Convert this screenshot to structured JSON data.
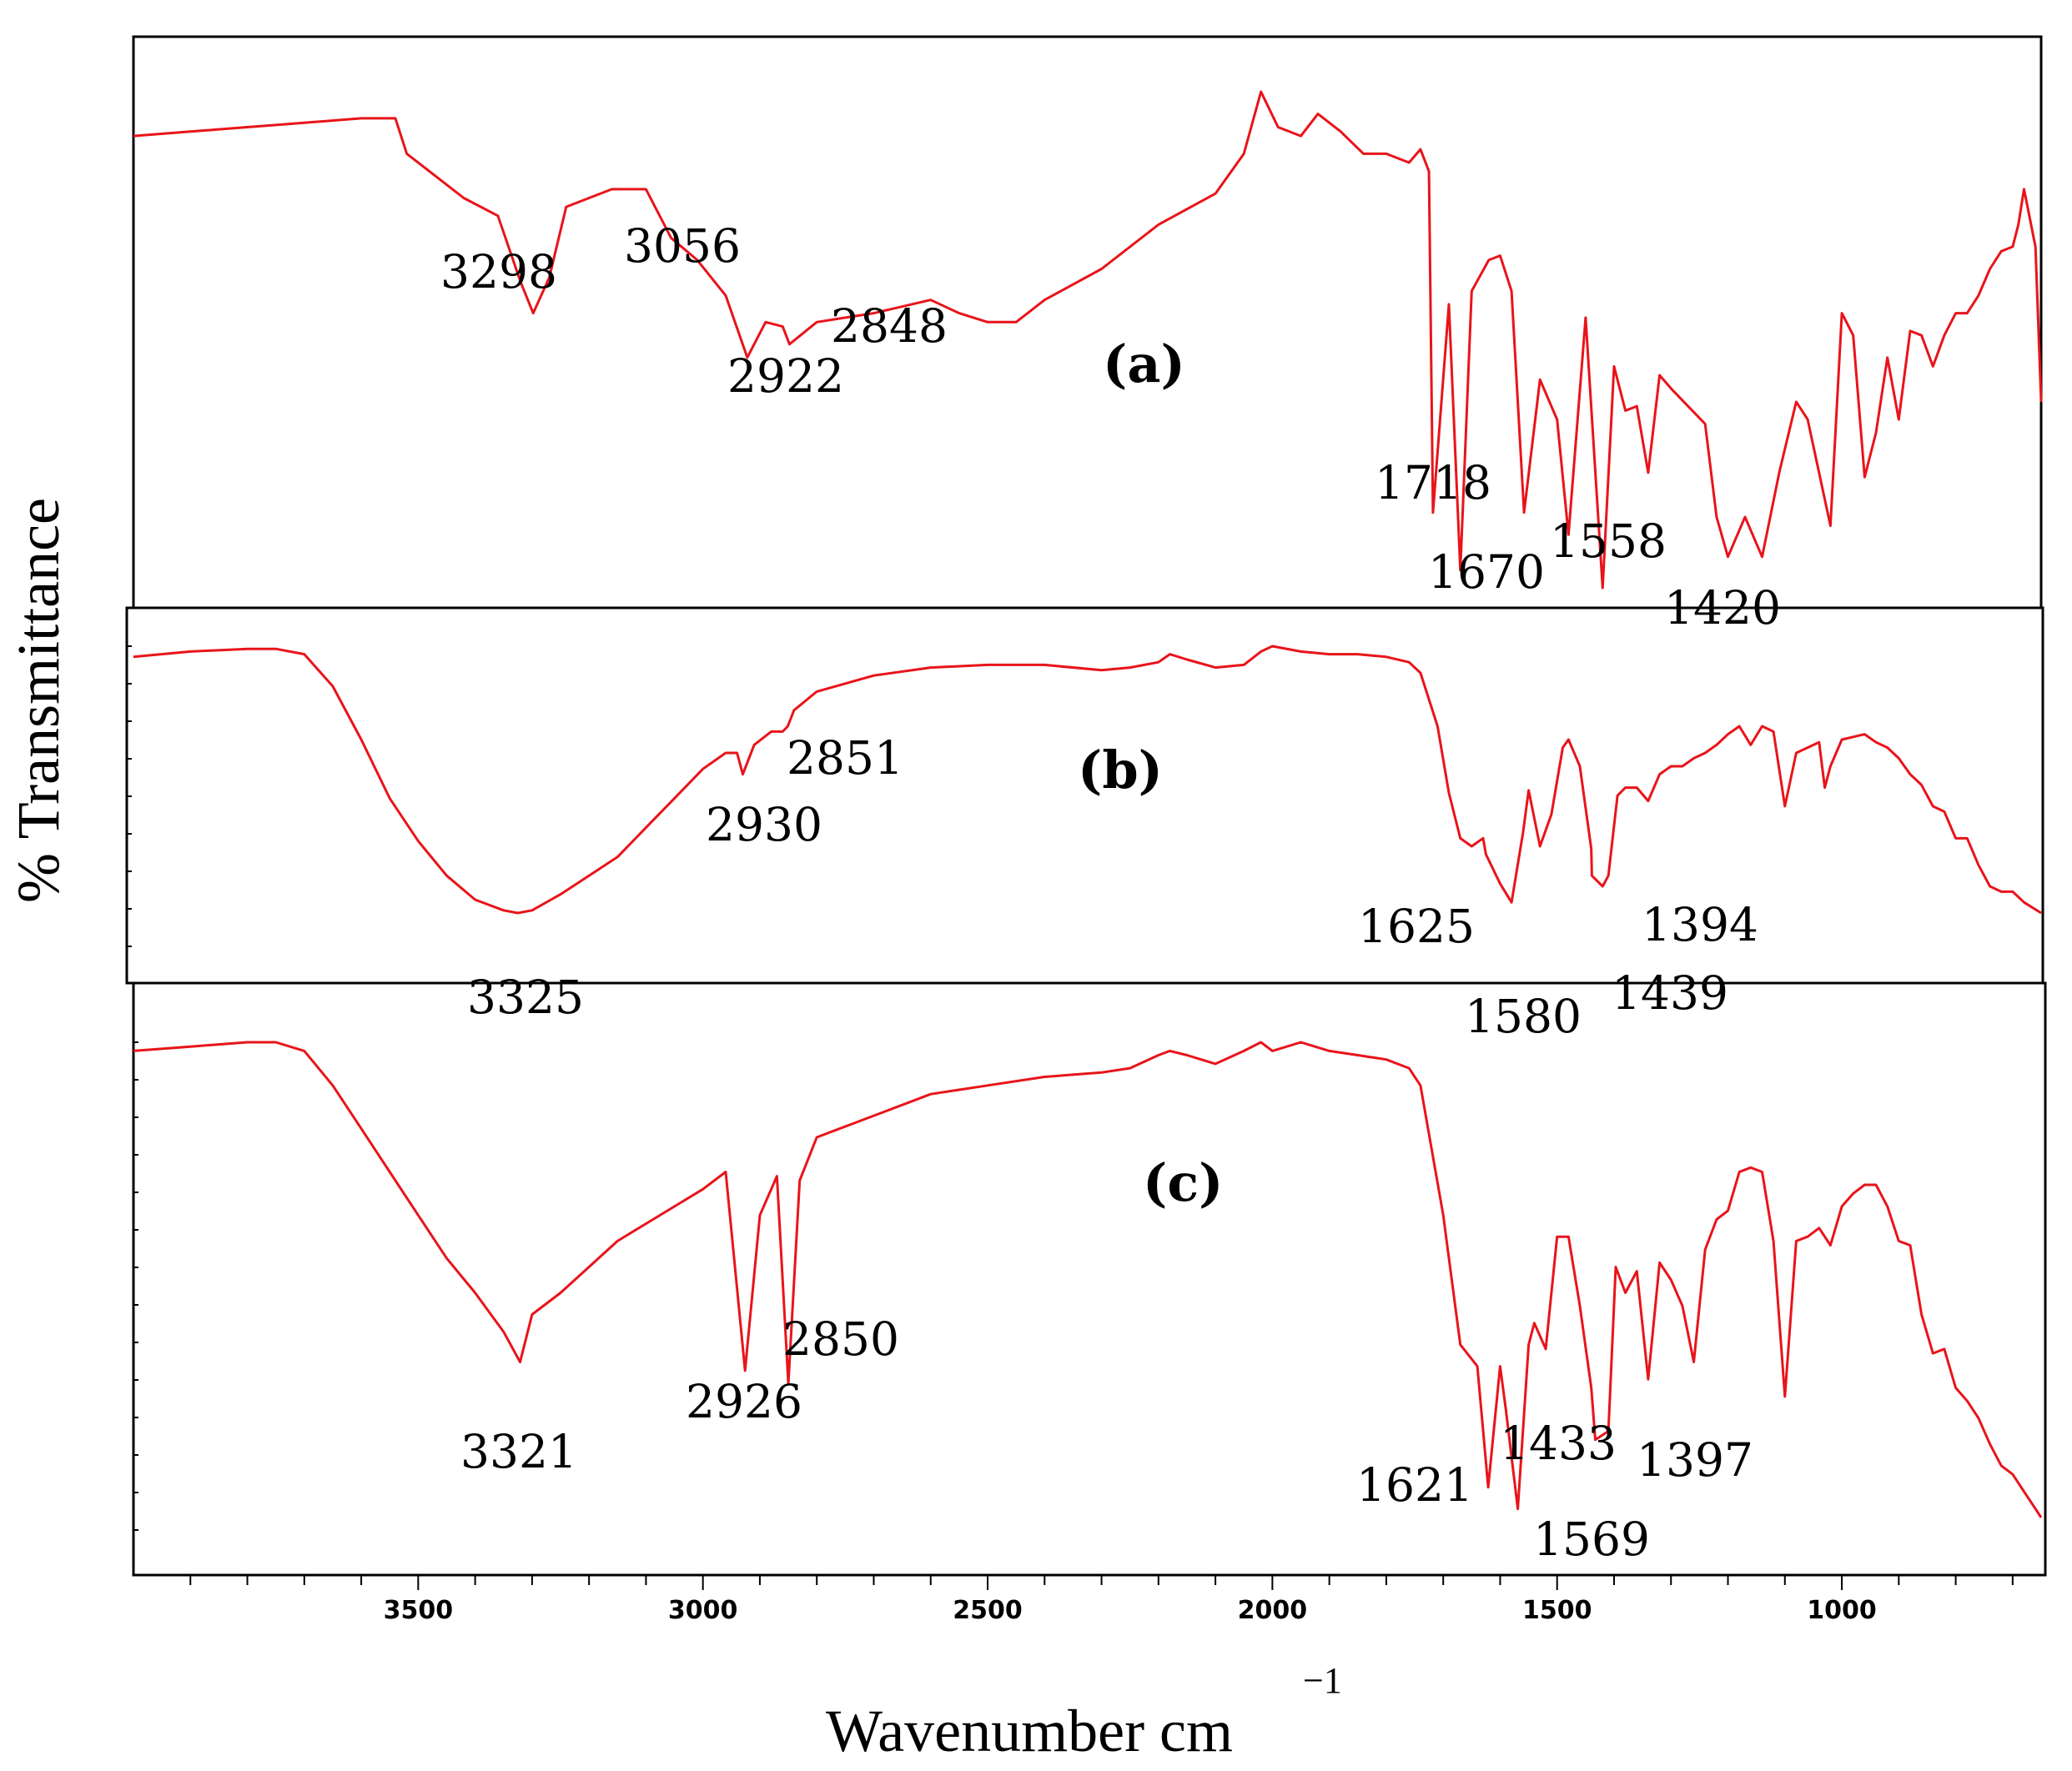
{
  "chart_data": {
    "type": "line",
    "title": "",
    "xlabel": "Wavenumber cm",
    "xlabel_superscript": "−1",
    "ylabel": "% Transmittance",
    "x_reversed": true,
    "xlim": [
      4000,
      650
    ],
    "x_ticks": [
      3500,
      3000,
      2500,
      2000,
      1500,
      1000
    ],
    "x_tick_labels": [
      "3500",
      "3000",
      "2500",
      "2000",
      "1500",
      "1000"
    ],
    "line_color": "#e8141a",
    "panels": [
      {
        "label": "(a)",
        "points": [
          [
            4000,
            0.1
          ],
          [
            3900,
            0.09
          ],
          [
            3800,
            0.08
          ],
          [
            3700,
            0.07
          ],
          [
            3600,
            0.06
          ],
          [
            3540,
            0.06
          ],
          [
            3520,
            0.14
          ],
          [
            3420,
            0.24
          ],
          [
            3360,
            0.28
          ],
          [
            3320,
            0.43
          ],
          [
            3298,
            0.5
          ],
          [
            3270,
            0.42
          ],
          [
            3240,
            0.26
          ],
          [
            3200,
            0.24
          ],
          [
            3160,
            0.22
          ],
          [
            3100,
            0.22
          ],
          [
            3056,
            0.33
          ],
          [
            3010,
            0.38
          ],
          [
            2960,
            0.46
          ],
          [
            2922,
            0.6
          ],
          [
            2890,
            0.52
          ],
          [
            2860,
            0.53
          ],
          [
            2848,
            0.57
          ],
          [
            2800,
            0.52
          ],
          [
            2700,
            0.5
          ],
          [
            2600,
            0.47
          ],
          [
            2550,
            0.5
          ],
          [
            2500,
            0.52
          ],
          [
            2450,
            0.52
          ],
          [
            2400,
            0.47
          ],
          [
            2300,
            0.4
          ],
          [
            2200,
            0.3
          ],
          [
            2100,
            0.23
          ],
          [
            2050,
            0.14
          ],
          [
            2020,
            0.0
          ],
          [
            1990,
            0.08
          ],
          [
            1950,
            0.1
          ],
          [
            1920,
            0.05
          ],
          [
            1880,
            0.09
          ],
          [
            1840,
            0.14
          ],
          [
            1800,
            0.14
          ],
          [
            1760,
            0.16
          ],
          [
            1740,
            0.13
          ],
          [
            1725,
            0.18
          ],
          [
            1718,
            0.95
          ],
          [
            1690,
            0.48
          ],
          [
            1670,
            1.08
          ],
          [
            1650,
            0.45
          ],
          [
            1620,
            0.38
          ],
          [
            1600,
            0.37
          ],
          [
            1580,
            0.45
          ],
          [
            1558,
            0.95
          ],
          [
            1530,
            0.65
          ],
          [
            1500,
            0.74
          ],
          [
            1480,
            1.0
          ],
          [
            1450,
            0.51
          ],
          [
            1420,
            1.12
          ],
          [
            1400,
            0.62
          ],
          [
            1380,
            0.72
          ],
          [
            1360,
            0.71
          ],
          [
            1340,
            0.86
          ],
          [
            1320,
            0.64
          ],
          [
            1300,
            0.67
          ],
          [
            1270,
            0.71
          ],
          [
            1240,
            0.75
          ],
          [
            1220,
            0.96
          ],
          [
            1200,
            1.05
          ],
          [
            1170,
            0.96
          ],
          [
            1140,
            1.05
          ],
          [
            1110,
            0.86
          ],
          [
            1080,
            0.7
          ],
          [
            1060,
            0.74
          ],
          [
            1020,
            0.98
          ],
          [
            1000,
            0.5
          ],
          [
            980,
            0.55
          ],
          [
            960,
            0.87
          ],
          [
            940,
            0.77
          ],
          [
            920,
            0.6
          ],
          [
            900,
            0.74
          ],
          [
            880,
            0.54
          ],
          [
            860,
            0.55
          ],
          [
            840,
            0.62
          ],
          [
            820,
            0.55
          ],
          [
            800,
            0.5
          ],
          [
            780,
            0.5
          ],
          [
            760,
            0.46
          ],
          [
            740,
            0.4
          ],
          [
            720,
            0.36
          ],
          [
            700,
            0.35
          ],
          [
            690,
            0.3
          ],
          [
            680,
            0.22
          ],
          [
            660,
            0.35
          ],
          [
            650,
            0.7
          ]
        ]
      },
      {
        "label": "(b)",
        "points": [
          [
            4000,
            0.04
          ],
          [
            3900,
            0.02
          ],
          [
            3800,
            0.01
          ],
          [
            3750,
            0.01
          ],
          [
            3700,
            0.03
          ],
          [
            3650,
            0.15
          ],
          [
            3600,
            0.35
          ],
          [
            3550,
            0.57
          ],
          [
            3500,
            0.73
          ],
          [
            3450,
            0.86
          ],
          [
            3400,
            0.95
          ],
          [
            3350,
            0.99
          ],
          [
            3325,
            1.0
          ],
          [
            3300,
            0.99
          ],
          [
            3250,
            0.93
          ],
          [
            3200,
            0.86
          ],
          [
            3150,
            0.79
          ],
          [
            3100,
            0.68
          ],
          [
            3050,
            0.57
          ],
          [
            3000,
            0.46
          ],
          [
            2960,
            0.4
          ],
          [
            2940,
            0.4
          ],
          [
            2930,
            0.48
          ],
          [
            2910,
            0.37
          ],
          [
            2880,
            0.32
          ],
          [
            2860,
            0.32
          ],
          [
            2851,
            0.3
          ],
          [
            2840,
            0.24
          ],
          [
            2800,
            0.17
          ],
          [
            2700,
            0.11
          ],
          [
            2600,
            0.08
          ],
          [
            2500,
            0.07
          ],
          [
            2400,
            0.07
          ],
          [
            2300,
            0.09
          ],
          [
            2250,
            0.08
          ],
          [
            2200,
            0.06
          ],
          [
            2180,
            0.03
          ],
          [
            2150,
            0.05
          ],
          [
            2100,
            0.08
          ],
          [
            2050,
            0.07
          ],
          [
            2020,
            0.02
          ],
          [
            2000,
            0.0
          ],
          [
            1950,
            0.02
          ],
          [
            1900,
            0.03
          ],
          [
            1850,
            0.03
          ],
          [
            1800,
            0.04
          ],
          [
            1760,
            0.06
          ],
          [
            1740,
            0.1
          ],
          [
            1710,
            0.3
          ],
          [
            1690,
            0.55
          ],
          [
            1670,
            0.72
          ],
          [
            1650,
            0.75
          ],
          [
            1630,
            0.72
          ],
          [
            1625,
            0.78
          ],
          [
            1600,
            0.89
          ],
          [
            1580,
            0.96
          ],
          [
            1560,
            0.7
          ],
          [
            1550,
            0.54
          ],
          [
            1530,
            0.75
          ],
          [
            1510,
            0.63
          ],
          [
            1490,
            0.38
          ],
          [
            1480,
            0.35
          ],
          [
            1460,
            0.45
          ],
          [
            1440,
            0.76
          ],
          [
            1439,
            0.86
          ],
          [
            1420,
            0.9
          ],
          [
            1410,
            0.86
          ],
          [
            1394,
            0.56
          ],
          [
            1380,
            0.53
          ],
          [
            1360,
            0.53
          ],
          [
            1340,
            0.58
          ],
          [
            1320,
            0.48
          ],
          [
            1300,
            0.45
          ],
          [
            1280,
            0.45
          ],
          [
            1260,
            0.42
          ],
          [
            1240,
            0.4
          ],
          [
            1220,
            0.37
          ],
          [
            1200,
            0.33
          ],
          [
            1180,
            0.3
          ],
          [
            1160,
            0.37
          ],
          [
            1140,
            0.3
          ],
          [
            1120,
            0.32
          ],
          [
            1100,
            0.6
          ],
          [
            1080,
            0.4
          ],
          [
            1060,
            0.38
          ],
          [
            1040,
            0.36
          ],
          [
            1030,
            0.53
          ],
          [
            1020,
            0.45
          ],
          [
            1000,
            0.35
          ],
          [
            980,
            0.34
          ],
          [
            960,
            0.33
          ],
          [
            940,
            0.36
          ],
          [
            920,
            0.38
          ],
          [
            900,
            0.42
          ],
          [
            880,
            0.48
          ],
          [
            860,
            0.52
          ],
          [
            840,
            0.6
          ],
          [
            820,
            0.62
          ],
          [
            800,
            0.72
          ],
          [
            780,
            0.72
          ],
          [
            760,
            0.82
          ],
          [
            740,
            0.9
          ],
          [
            720,
            0.92
          ],
          [
            700,
            0.92
          ],
          [
            680,
            0.96
          ],
          [
            650,
            1.0
          ]
        ]
      },
      {
        "label": "(c)",
        "points": [
          [
            4000,
            0.02
          ],
          [
            3900,
            0.01
          ],
          [
            3800,
            0.0
          ],
          [
            3750,
            0.0
          ],
          [
            3700,
            0.02
          ],
          [
            3650,
            0.1
          ],
          [
            3600,
            0.2
          ],
          [
            3550,
            0.3
          ],
          [
            3500,
            0.4
          ],
          [
            3450,
            0.5
          ],
          [
            3400,
            0.58
          ],
          [
            3350,
            0.67
          ],
          [
            3321,
            0.74
          ],
          [
            3300,
            0.63
          ],
          [
            3250,
            0.58
          ],
          [
            3200,
            0.52
          ],
          [
            3150,
            0.46
          ],
          [
            3100,
            0.42
          ],
          [
            3050,
            0.38
          ],
          [
            3000,
            0.34
          ],
          [
            2960,
            0.3
          ],
          [
            2926,
            0.76
          ],
          [
            2900,
            0.4
          ],
          [
            2870,
            0.31
          ],
          [
            2850,
            0.79
          ],
          [
            2830,
            0.32
          ],
          [
            2800,
            0.22
          ],
          [
            2700,
            0.17
          ],
          [
            2600,
            0.12
          ],
          [
            2500,
            0.1
          ],
          [
            2400,
            0.08
          ],
          [
            2300,
            0.07
          ],
          [
            2250,
            0.06
          ],
          [
            2200,
            0.03
          ],
          [
            2180,
            0.02
          ],
          [
            2150,
            0.03
          ],
          [
            2100,
            0.05
          ],
          [
            2050,
            0.02
          ],
          [
            2020,
            0.0
          ],
          [
            2000,
            0.02
          ],
          [
            1950,
            0.0
          ],
          [
            1900,
            0.02
          ],
          [
            1850,
            0.03
          ],
          [
            1800,
            0.04
          ],
          [
            1760,
            0.06
          ],
          [
            1740,
            0.1
          ],
          [
            1700,
            0.4
          ],
          [
            1670,
            0.7
          ],
          [
            1640,
            0.75
          ],
          [
            1621,
            1.03
          ],
          [
            1600,
            0.75
          ],
          [
            1590,
            0.85
          ],
          [
            1569,
            1.08
          ],
          [
            1550,
            0.7
          ],
          [
            1540,
            0.65
          ],
          [
            1520,
            0.71
          ],
          [
            1500,
            0.45
          ],
          [
            1480,
            0.45
          ],
          [
            1460,
            0.61
          ],
          [
            1440,
            0.8
          ],
          [
            1433,
            0.92
          ],
          [
            1410,
            0.9
          ],
          [
            1397,
            0.52
          ],
          [
            1380,
            0.58
          ],
          [
            1360,
            0.53
          ],
          [
            1340,
            0.78
          ],
          [
            1320,
            0.51
          ],
          [
            1300,
            0.55
          ],
          [
            1280,
            0.61
          ],
          [
            1260,
            0.74
          ],
          [
            1240,
            0.48
          ],
          [
            1220,
            0.41
          ],
          [
            1200,
            0.39
          ],
          [
            1180,
            0.3
          ],
          [
            1160,
            0.29
          ],
          [
            1140,
            0.3
          ],
          [
            1120,
            0.46
          ],
          [
            1100,
            0.82
          ],
          [
            1080,
            0.46
          ],
          [
            1060,
            0.45
          ],
          [
            1040,
            0.43
          ],
          [
            1020,
            0.47
          ],
          [
            1000,
            0.38
          ],
          [
            980,
            0.35
          ],
          [
            960,
            0.33
          ],
          [
            940,
            0.33
          ],
          [
            920,
            0.38
          ],
          [
            900,
            0.46
          ],
          [
            880,
            0.47
          ],
          [
            860,
            0.63
          ],
          [
            840,
            0.72
          ],
          [
            820,
            0.71
          ],
          [
            800,
            0.8
          ],
          [
            780,
            0.83
          ],
          [
            760,
            0.87
          ],
          [
            740,
            0.93
          ],
          [
            720,
            0.98
          ],
          [
            700,
            1.0
          ],
          [
            680,
            1.04
          ],
          [
            660,
            1.08
          ],
          [
            650,
            1.1
          ]
        ]
      }
    ],
    "peak_labels": [
      {
        "text": "3298"
      },
      {
        "text": "3056"
      },
      {
        "text": "2922"
      },
      {
        "text": "2848"
      },
      {
        "text": "1718"
      },
      {
        "text": "1670"
      },
      {
        "text": "1558"
      },
      {
        "text": "1420"
      },
      {
        "text": "3325"
      },
      {
        "text": "2930"
      },
      {
        "text": "2851"
      },
      {
        "text": "1625"
      },
      {
        "text": "1580"
      },
      {
        "text": "1439"
      },
      {
        "text": "1394"
      },
      {
        "text": "3321"
      },
      {
        "text": "2926"
      },
      {
        "text": "2850"
      },
      {
        "text": "1621"
      },
      {
        "text": "1433"
      },
      {
        "text": "1569"
      },
      {
        "text": "1397"
      }
    ]
  }
}
